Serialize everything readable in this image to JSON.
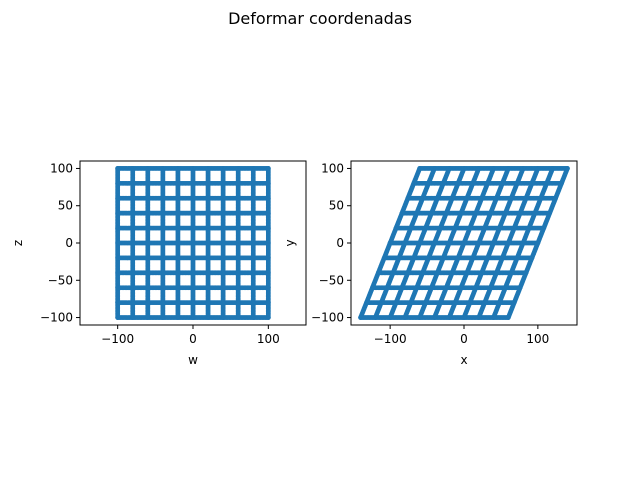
{
  "suptitle": "Deformar coordenadas",
  "colors": {
    "series": "#1f77b4",
    "axis": "#000000"
  },
  "chart_data": [
    {
      "type": "scatter",
      "title": "",
      "xlabel": "w",
      "ylabel": "z",
      "xlim": [
        -150,
        150
      ],
      "ylim": [
        -110,
        110
      ],
      "xticks": [
        -100,
        0,
        100
      ],
      "yticks": [
        -100,
        -50,
        0,
        50,
        100
      ],
      "xtick_labels": [
        "−100",
        "0",
        "100"
      ],
      "ytick_labels": [
        "−100",
        "−50",
        "0",
        "50",
        "100"
      ],
      "grid": false,
      "marker": "dot",
      "series": [
        {
          "grid_lines": [
            -100,
            -80,
            -60,
            -40,
            -20,
            0,
            20,
            40,
            60,
            80,
            100
          ],
          "range": [
            -100,
            100
          ],
          "transform": {
            "x": [
              1,
              0
            ],
            "y": [
              0,
              1
            ]
          }
        }
      ]
    },
    {
      "type": "scatter",
      "title": "",
      "xlabel": "x",
      "ylabel": "y",
      "xlim": [
        -153,
        153
      ],
      "ylim": [
        -110,
        110
      ],
      "xticks": [
        -100,
        0,
        100
      ],
      "yticks": [
        -100,
        -50,
        0,
        50,
        100
      ],
      "xtick_labels": [
        "−100",
        "0",
        "100"
      ],
      "ytick_labels": [
        "−100",
        "−50",
        "0",
        "50",
        "100"
      ],
      "grid": false,
      "marker": "dot",
      "series": [
        {
          "grid_lines": [
            -100,
            -80,
            -60,
            -40,
            -20,
            0,
            20,
            40,
            60,
            80,
            100
          ],
          "range": [
            -100,
            100
          ],
          "transform": {
            "x": [
              1,
              0.4
            ],
            "y": [
              0,
              1
            ]
          }
        }
      ]
    }
  ]
}
